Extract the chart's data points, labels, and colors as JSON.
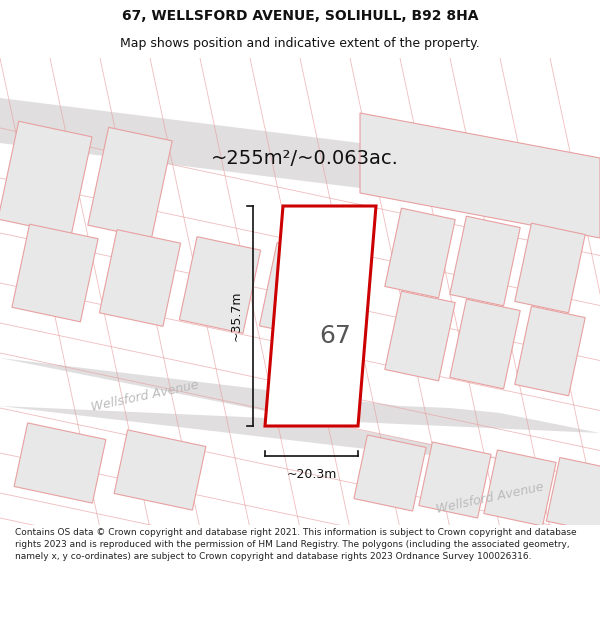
{
  "title_line1": "67, WELLSFORD AVENUE, SOLIHULL, B92 8HA",
  "title_line2": "Map shows position and indicative extent of the property.",
  "area_text": "~255m²/~0.063ac.",
  "dim_width": "~20.3m",
  "dim_height": "~35.7m",
  "plot_label": "67",
  "road_label1": "Wellsford Avenue",
  "road_label2": "Wellsford Avenue",
  "footer_text": "Contains OS data © Crown copyright and database right 2021. This information is subject to Crown copyright and database rights 2023 and is reproduced with the permission of HM Land Registry. The polygons (including the associated geometry, namely x, y co-ordinates) are subject to Crown copyright and database rights 2023 Ordnance Survey 100026316.",
  "map_bg": "#ffffff",
  "parcel_fill": "#e8e8e8",
  "parcel_edge": "#e8a0a0",
  "plot_fill": "#ffffff",
  "plot_edge": "#cc0000",
  "road_fill": "#e0dede",
  "road_edge": "none",
  "dim_color": "#111111",
  "road_text_color": "#bbbbbb",
  "area_text_color": "#111111",
  "plot_label_color": "#555555"
}
